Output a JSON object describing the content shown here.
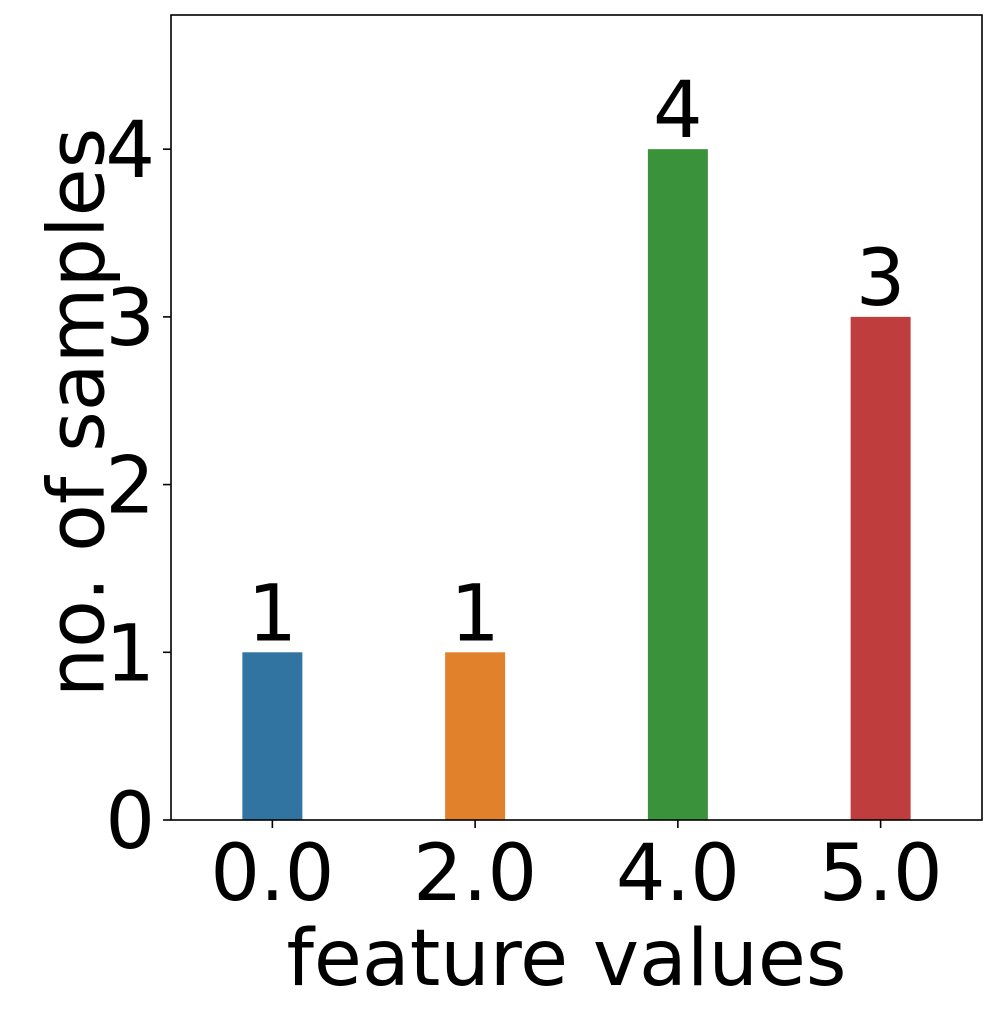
{
  "chart_data": {
    "type": "bar",
    "title": "",
    "xlabel": "feature values",
    "ylabel": "no. of samples",
    "categories": [
      "0.0",
      "2.0",
      "4.0",
      "5.0"
    ],
    "values": [
      1,
      1,
      4,
      3
    ],
    "data_labels": [
      "1",
      "1",
      "4",
      "3"
    ],
    "colors": [
      "#3274a1",
      "#e1812c",
      "#3a923a",
      "#c03d3e"
    ],
    "ylim": [
      0,
      4.8
    ],
    "yticks": [
      0,
      1,
      2,
      3,
      4
    ],
    "ytick_labels": [
      "0",
      "1",
      "2",
      "3",
      "4"
    ],
    "grid": false,
    "legend": "none"
  }
}
